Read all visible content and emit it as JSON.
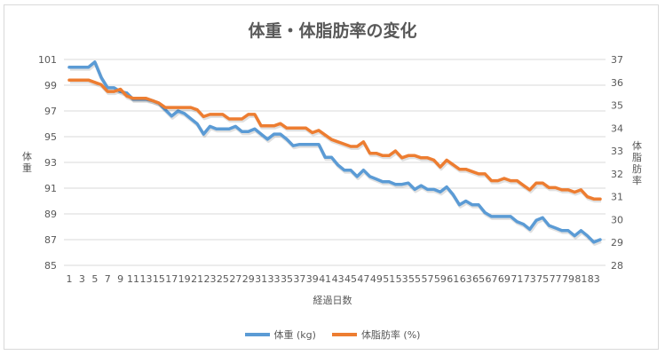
{
  "chart_data": {
    "type": "line",
    "title": "体重・体脂肪率の変化",
    "xlabel": "経過日数",
    "ylabel": "体重",
    "ylabel_right": "体脂肪率",
    "x": [
      1,
      2,
      3,
      4,
      5,
      6,
      7,
      8,
      9,
      10,
      11,
      12,
      13,
      14,
      15,
      16,
      17,
      18,
      19,
      20,
      21,
      22,
      23,
      24,
      25,
      26,
      27,
      28,
      29,
      30,
      31,
      32,
      33,
      34,
      35,
      36,
      37,
      38,
      39,
      40,
      41,
      42,
      43,
      44,
      45,
      46,
      47,
      48,
      49,
      50,
      51,
      52,
      53,
      54,
      55,
      56,
      57,
      58,
      59,
      60,
      61,
      62,
      63,
      64,
      65,
      66,
      67,
      68,
      69,
      70,
      71,
      72,
      73,
      74,
      75,
      76,
      77,
      78,
      79,
      80,
      81,
      82,
      83,
      84
    ],
    "x_tick_labels": [
      "1",
      "3",
      "5",
      "7",
      "9",
      "11",
      "13",
      "15",
      "17",
      "19",
      "21",
      "23",
      "25",
      "27",
      "29",
      "31",
      "33",
      "35",
      "37",
      "39",
      "41",
      "43",
      "45",
      "47",
      "49",
      "51",
      "53",
      "55",
      "57",
      "59",
      "61",
      "63",
      "65",
      "67",
      "69",
      "71",
      "73",
      "75",
      "77",
      "79",
      "81",
      "83"
    ],
    "ylim": [
      85,
      101
    ],
    "y_ticks": [
      "85",
      "87",
      "89",
      "91",
      "93",
      "95",
      "97",
      "99",
      "101"
    ],
    "ylim_right": [
      28,
      37
    ],
    "y_ticks_right": [
      "28",
      "29",
      "30",
      "31",
      "32",
      "33",
      "34",
      "35",
      "36",
      "37"
    ],
    "grid": true,
    "legend_position": "bottom",
    "series": [
      {
        "name": "体重 (kg)",
        "axis": "left",
        "color": "#5b9bd5",
        "values": [
          100.4,
          100.4,
          100.4,
          100.4,
          100.8,
          99.6,
          98.8,
          98.8,
          98.5,
          98.4,
          97.9,
          97.9,
          97.9,
          97.8,
          97.6,
          97.1,
          96.6,
          97.0,
          96.8,
          96.4,
          96.0,
          95.2,
          95.8,
          95.6,
          95.6,
          95.6,
          95.8,
          95.4,
          95.4,
          95.6,
          95.2,
          94.8,
          95.2,
          95.2,
          94.8,
          94.3,
          94.4,
          94.4,
          94.4,
          94.4,
          93.4,
          93.4,
          92.8,
          92.4,
          92.4,
          91.9,
          92.4,
          91.9,
          91.7,
          91.5,
          91.5,
          91.3,
          91.3,
          91.4,
          90.9,
          91.2,
          90.9,
          90.9,
          90.7,
          91.1,
          90.5,
          89.7,
          90.0,
          89.7,
          89.7,
          89.1,
          88.8,
          88.8,
          88.8,
          88.8,
          88.4,
          88.2,
          87.8,
          88.5,
          88.7,
          88.1,
          87.9,
          87.7,
          87.7,
          87.3,
          87.7,
          87.3,
          86.8,
          87.0
        ]
      },
      {
        "name": "体脂肪率 (%)",
        "axis": "right",
        "color": "#ed7d31",
        "values": [
          36.1,
          36.1,
          36.1,
          36.1,
          36.0,
          35.9,
          35.6,
          35.6,
          35.7,
          35.4,
          35.3,
          35.3,
          35.3,
          35.2,
          35.1,
          34.9,
          34.9,
          34.9,
          34.9,
          34.9,
          34.8,
          34.5,
          34.6,
          34.6,
          34.6,
          34.4,
          34.4,
          34.4,
          34.6,
          34.6,
          34.1,
          34.1,
          34.1,
          34.2,
          34.0,
          34.0,
          34.0,
          34.0,
          33.8,
          33.9,
          33.7,
          33.5,
          33.4,
          33.3,
          33.2,
          33.2,
          33.4,
          32.9,
          32.9,
          32.8,
          32.8,
          33.0,
          32.7,
          32.8,
          32.8,
          32.7,
          32.7,
          32.6,
          32.3,
          32.6,
          32.4,
          32.2,
          32.2,
          32.1,
          32.0,
          32.0,
          31.7,
          31.7,
          31.8,
          31.7,
          31.7,
          31.5,
          31.3,
          31.6,
          31.6,
          31.4,
          31.4,
          31.3,
          31.3,
          31.2,
          31.3,
          31.0,
          30.9,
          30.9
        ]
      }
    ]
  }
}
